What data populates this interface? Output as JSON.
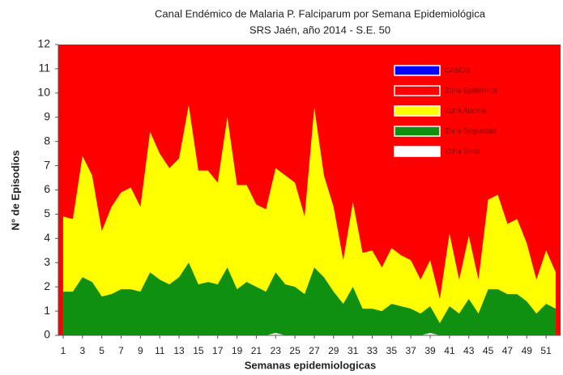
{
  "chart_data": {
    "type": "area",
    "title": "Canal Endémico de Malaria P. Falciparum por Semana Epidemiológica",
    "subtitle": "SRS Jaén, año 2014 - S.E. 50",
    "x_label": "Semanas epidemiologicas",
    "y_label": "N° de Episodios",
    "x": [
      1,
      2,
      3,
      4,
      5,
      6,
      7,
      8,
      9,
      10,
      11,
      12,
      13,
      14,
      15,
      16,
      17,
      18,
      19,
      20,
      21,
      22,
      23,
      24,
      25,
      26,
      27,
      28,
      29,
      30,
      31,
      32,
      33,
      34,
      35,
      36,
      37,
      38,
      39,
      40,
      41,
      42,
      43,
      44,
      45,
      46,
      47,
      48,
      49,
      50,
      51,
      52
    ],
    "xlim": [
      0.5,
      52.5
    ],
    "xticks": [
      1,
      3,
      5,
      7,
      9,
      11,
      13,
      15,
      17,
      19,
      21,
      23,
      25,
      27,
      29,
      31,
      33,
      35,
      37,
      39,
      41,
      43,
      45,
      47,
      49,
      51
    ],
    "ylim": [
      0,
      12
    ],
    "yticks": [
      0,
      1,
      2,
      3,
      4,
      5,
      6,
      7,
      8,
      9,
      10,
      11,
      12
    ],
    "series": [
      {
        "name": "CASOS",
        "color": "#0000ff"
      },
      {
        "name": "Zona Epidémica",
        "color": "#ff0000",
        "values": [
          12,
          12,
          12,
          12,
          12,
          12,
          12,
          12,
          12,
          12,
          12,
          12,
          12,
          12,
          12,
          12,
          12,
          12,
          12,
          12,
          12,
          12,
          12,
          12,
          12,
          12,
          12,
          12,
          12,
          12,
          12,
          12,
          12,
          12,
          12,
          12,
          12,
          12,
          12,
          12,
          12,
          12,
          12,
          12,
          12,
          12,
          12,
          12,
          12,
          12,
          12,
          12
        ]
      },
      {
        "name": "Zona Alarma",
        "color": "#ffff00",
        "values": [
          4.9,
          4.8,
          7.4,
          6.6,
          4.3,
          5.3,
          5.9,
          6.1,
          5.3,
          8.4,
          7.5,
          6.9,
          7.3,
          9.5,
          6.8,
          6.8,
          6.3,
          9.0,
          6.2,
          6.2,
          5.4,
          5.2,
          6.9,
          6.6,
          6.3,
          4.9,
          9.4,
          6.6,
          5.3,
          3.1,
          5.5,
          3.4,
          3.5,
          2.8,
          3.6,
          3.3,
          3.1,
          2.3,
          3.1,
          1.5,
          4.2,
          2.3,
          4.1,
          2.3,
          5.6,
          5.8,
          4.6,
          4.8,
          3.8,
          2.3,
          3.5,
          2.6
        ]
      },
      {
        "name": "Zona Seguridad",
        "color": "#109010",
        "values": [
          1.8,
          1.8,
          2.4,
          2.2,
          1.6,
          1.7,
          1.9,
          1.9,
          1.8,
          2.6,
          2.3,
          2.1,
          2.4,
          3.0,
          2.1,
          2.2,
          2.1,
          2.8,
          1.9,
          2.2,
          2.0,
          1.8,
          2.6,
          2.1,
          2.0,
          1.7,
          2.8,
          2.4,
          1.8,
          1.3,
          2.0,
          1.1,
          1.1,
          1.0,
          1.3,
          1.2,
          1.1,
          0.9,
          1.2,
          0.5,
          1.2,
          0.9,
          1.5,
          0.9,
          1.9,
          1.9,
          1.7,
          1.7,
          1.4,
          0.9,
          1.3,
          1.1
        ]
      },
      {
        "name": "Zona Éxito",
        "color": "#ffffff",
        "values": [
          0,
          0,
          0,
          0,
          0,
          0,
          0,
          0,
          0,
          0,
          0,
          0,
          0,
          0,
          0,
          0,
          0,
          0,
          0,
          0,
          0,
          0,
          0.1,
          0,
          0,
          0,
          0,
          0,
          0,
          0,
          0,
          0,
          0,
          0,
          0,
          0,
          0,
          0,
          0.1,
          0,
          0,
          0,
          0,
          0,
          0,
          0,
          0,
          0,
          0,
          0,
          0,
          0
        ]
      }
    ],
    "legend": "upper right"
  }
}
